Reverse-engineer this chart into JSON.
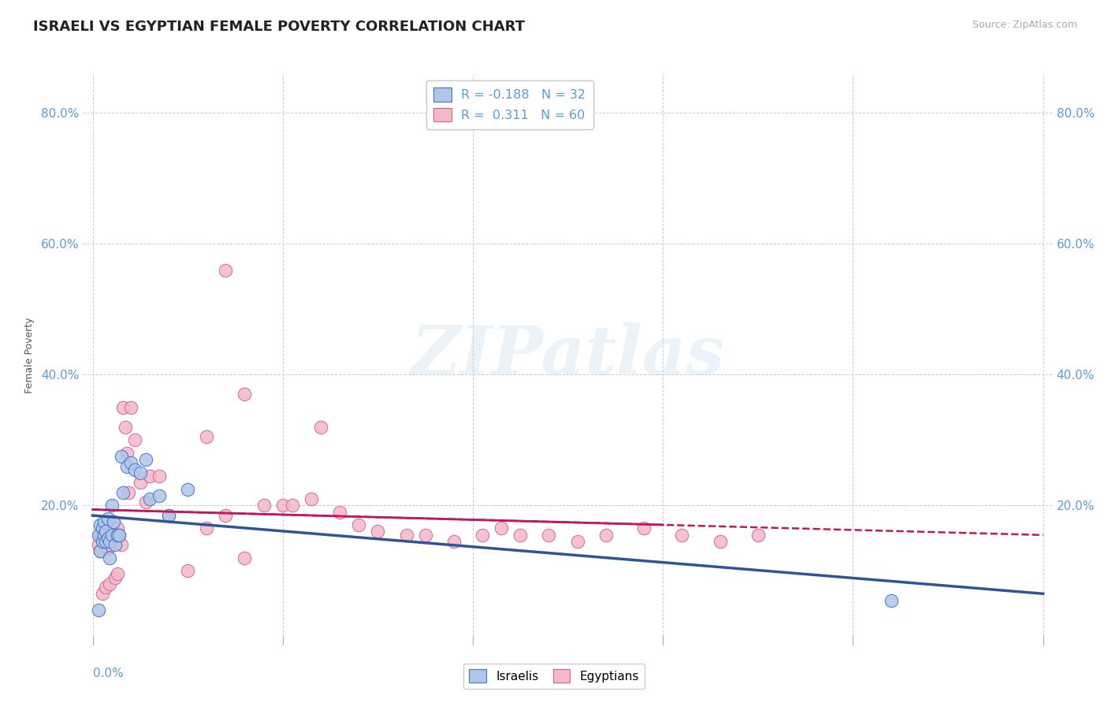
{
  "title": "ISRAELI VS EGYPTIAN FEMALE POVERTY CORRELATION CHART",
  "source": "Source: ZipAtlas.com",
  "ylabel": "Female Poverty",
  "ylim": [
    0.0,
    0.86
  ],
  "xlim": [
    -0.005,
    0.505
  ],
  "yticks": [
    0.0,
    0.2,
    0.4,
    0.6,
    0.8
  ],
  "ytick_labels": [
    "",
    "20.0%",
    "40.0%",
    "60.0%",
    "80.0%"
  ],
  "title_color": "#222222",
  "title_fontsize": 13,
  "axis_color": "#5b9bd5",
  "israeli_color": "#aec6e8",
  "egyptian_color": "#f5b8ca",
  "israeli_edge_color": "#4472c4",
  "egyptian_edge_color": "#d4608a",
  "israeli_line_color": "#2f5597",
  "egyptian_line_color": "#c0185f",
  "background_color": "#ffffff",
  "grid_color": "#cccccc",
  "legend_R_israeli": "-0.188",
  "legend_N_israeli": "32",
  "legend_R_egyptian": "0.311",
  "legend_N_egyptian": "60",
  "watermark": "ZIPatlas",
  "israeli_x": [
    0.003,
    0.004,
    0.004,
    0.005,
    0.005,
    0.006,
    0.006,
    0.007,
    0.007,
    0.008,
    0.008,
    0.009,
    0.009,
    0.01,
    0.01,
    0.011,
    0.012,
    0.013,
    0.014,
    0.015,
    0.016,
    0.018,
    0.02,
    0.022,
    0.025,
    0.028,
    0.03,
    0.035,
    0.04,
    0.05,
    0.42,
    0.003
  ],
  "israeli_y": [
    0.155,
    0.17,
    0.13,
    0.145,
    0.165,
    0.155,
    0.175,
    0.16,
    0.145,
    0.18,
    0.15,
    0.12,
    0.145,
    0.2,
    0.155,
    0.175,
    0.14,
    0.155,
    0.155,
    0.275,
    0.22,
    0.26,
    0.265,
    0.255,
    0.25,
    0.27,
    0.21,
    0.215,
    0.185,
    0.225,
    0.055,
    0.04
  ],
  "egyptian_x": [
    0.003,
    0.004,
    0.004,
    0.005,
    0.005,
    0.006,
    0.006,
    0.007,
    0.007,
    0.008,
    0.008,
    0.009,
    0.009,
    0.01,
    0.01,
    0.011,
    0.012,
    0.013,
    0.013,
    0.014,
    0.015,
    0.016,
    0.017,
    0.018,
    0.019,
    0.02,
    0.022,
    0.025,
    0.028,
    0.03,
    0.035,
    0.04,
    0.05,
    0.06,
    0.07,
    0.08,
    0.09,
    0.1,
    0.115,
    0.13,
    0.14,
    0.15,
    0.165,
    0.175,
    0.19,
    0.205,
    0.215,
    0.225,
    0.24,
    0.255,
    0.27,
    0.29,
    0.31,
    0.33,
    0.35,
    0.12,
    0.06,
    0.07,
    0.08,
    0.105
  ],
  "egyptian_y": [
    0.14,
    0.155,
    0.13,
    0.15,
    0.065,
    0.16,
    0.145,
    0.075,
    0.17,
    0.155,
    0.135,
    0.14,
    0.08,
    0.165,
    0.145,
    0.175,
    0.09,
    0.095,
    0.165,
    0.155,
    0.14,
    0.35,
    0.32,
    0.28,
    0.22,
    0.35,
    0.3,
    0.235,
    0.205,
    0.245,
    0.245,
    0.185,
    0.1,
    0.305,
    0.56,
    0.37,
    0.2,
    0.2,
    0.21,
    0.19,
    0.17,
    0.16,
    0.155,
    0.155,
    0.145,
    0.155,
    0.165,
    0.155,
    0.155,
    0.145,
    0.155,
    0.165,
    0.155,
    0.145,
    0.155,
    0.32,
    0.165,
    0.185,
    0.12,
    0.2
  ]
}
